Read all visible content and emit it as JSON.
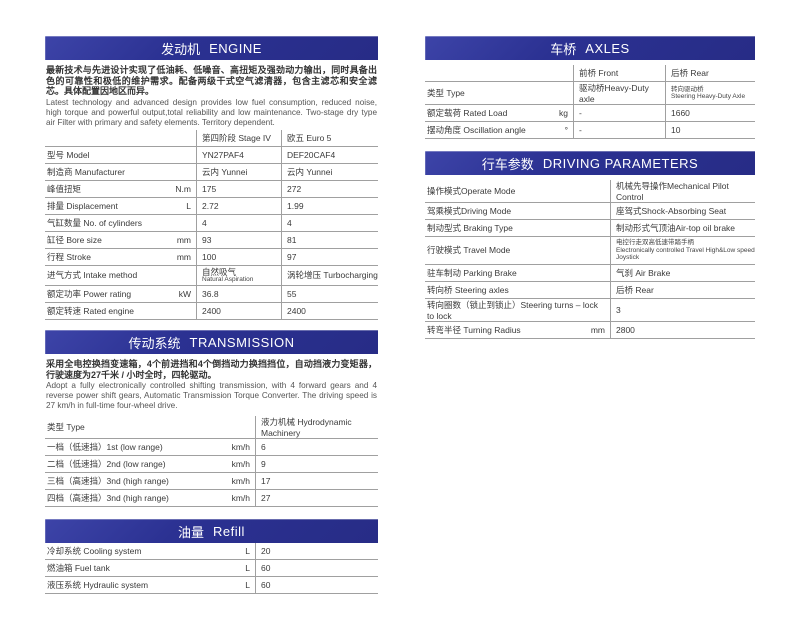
{
  "colors": {
    "header_blue": "#2b3192",
    "header_highlight": "#3d44a8",
    "rule_gray": "#a0a0a0",
    "text": "#3a3a3a"
  },
  "engine": {
    "title_zh": "发动机",
    "title_en": "ENGINE",
    "desc_zh": "最新技术与先进设计实现了低油耗、低噪音、高扭矩及强劲动力输出，同时具备出色的可靠性和极低的维护需求。配备两级干式空气滤清器，包含主滤芯和安全滤芯。具体配置因地区而异。",
    "desc_en": "Latest technology and advanced design provides low fuel consumption, reduced noise, high torque and powerful output,total reliability and low maintenance. Two-stage dry type air Filter with primary and safety elements. Territory dependent.",
    "header": {
      "col1": "第四阶段 Stage IV",
      "col2": "欧五 Euro 5"
    },
    "rows": [
      {
        "label": "型号 Model",
        "unit": "",
        "v1": "YN27PAF4",
        "v2": "DEF20CAF4"
      },
      {
        "label": "制造商 Manufacturer",
        "unit": "",
        "v1": "云内 Yunnei",
        "v2": "云内 Yunnei"
      },
      {
        "label": "峰值扭矩",
        "unit": "N.m",
        "v1": "175",
        "v2": "272"
      },
      {
        "label": "排量 Displacement",
        "unit": "L",
        "v1": "2.72",
        "v2": "1.99"
      },
      {
        "label": "气缸数量 No. of cylinders",
        "unit": "",
        "v1": "4",
        "v2": "4"
      },
      {
        "label": "缸径 Bore size",
        "unit": "mm",
        "v1": "93",
        "v2": "81"
      },
      {
        "label": "行程 Stroke",
        "unit": "mm",
        "v1": "100",
        "v2": "97"
      },
      {
        "label": "进气方式 Intake method",
        "unit": "",
        "v1_line1": "自然吸气",
        "v1_line2": "Natural Aspiration",
        "v2": "涡轮增压 Turbocharging"
      },
      {
        "label": "额定功率 Power rating",
        "unit": "kW",
        "v1": "36.8",
        "v2": "55"
      },
      {
        "label": "额定转速 Rated engine",
        "unit": "",
        "v1": "2400",
        "v2": "2400"
      }
    ]
  },
  "transmission": {
    "title_zh": "传动系统",
    "title_en": "TRANSMISSION",
    "desc_zh": "采用全电控换挡变速箱，4个前进挡和4个倒挡动力换挡挡位，自动挡液力变矩器，行驶速度为27千米 / 小时全时，四轮驱动。",
    "desc_en": "Adopt a fully electronically controlled shifting transmission, with 4 forward gears and 4 reverse power shift gears, Automatic Transmission Torque Converter. The driving speed is 27 km/h in full-time four-wheel drive.",
    "header": {
      "label": "类型 Type",
      "value": "液力机械 Hydrodynamic Machinery"
    },
    "rows": [
      {
        "label": "一档（低速挡）1st (low range)",
        "unit": "km/h",
        "value": "6"
      },
      {
        "label": "二档（低速挡）2nd (low range)",
        "unit": "km/h",
        "value": "9"
      },
      {
        "label": "三档（高速挡）3nd (high range)",
        "unit": "km/h",
        "value": "17"
      },
      {
        "label": "四档（高速挡）3nd (high range)",
        "unit": "km/h",
        "value": "27"
      }
    ]
  },
  "refill": {
    "title_zh": "油量",
    "title_en": "Refill",
    "rows": [
      {
        "label": "冷却系统 Cooling system",
        "unit": "L",
        "value": "20"
      },
      {
        "label": "燃油箱 Fuel tank",
        "unit": "L",
        "value": "60"
      },
      {
        "label": "液压系统 Hydraulic system",
        "unit": "L",
        "value": "60"
      }
    ]
  },
  "axles": {
    "title_zh": "车桥",
    "title_en": "AXLES",
    "header": {
      "col1": "前桥 Front",
      "col2": "后桥 Rear"
    },
    "rows": [
      {
        "label": "类型 Type",
        "unit": "",
        "front": "驱动桥Heavy-Duty axle",
        "rear_line1": "转向驱动桥",
        "rear_line2": "Steering Heavy-Duty Axle"
      },
      {
        "label": "额定载荷 Rated Load",
        "unit": "kg",
        "front": "-",
        "rear": "1660"
      },
      {
        "label": "摆动角度 Oscillation angle",
        "unit": "°",
        "front": "-",
        "rear": "10"
      }
    ]
  },
  "driving": {
    "title_zh": "行车参数",
    "title_en": "DRIVING PARAMETERS",
    "rows": [
      {
        "label": "操作模式Operate Mode",
        "unit": "",
        "value": "机械先导操作Mechanical Pilot Control"
      },
      {
        "label": "驾乘模式Driving Mode",
        "unit": "",
        "value": "座驾式Shock-Absorbing Seat"
      },
      {
        "label": "制动型式 Braking Type",
        "unit": "",
        "value": "制动形式气顶油Air-top oil brake"
      },
      {
        "label": "行驶模式 Travel Mode",
        "unit": "",
        "value_line1": "电控行走双高低速带踏手柄",
        "value_line2": "Electronically controlled Travel High&Low speed Joystick"
      },
      {
        "label": "驻车制动 Parking Brake",
        "unit": "",
        "value": "气刹 Air Brake"
      },
      {
        "label": "转向桥 Steering axles",
        "unit": "",
        "value": "后桥 Rear"
      },
      {
        "label": "转向圈数（锁止到锁止）Steering turns – lock to lock",
        "unit": "",
        "value": "3"
      },
      {
        "label": "转弯半径 Turning Radius",
        "unit": "mm",
        "value": "2800"
      }
    ]
  }
}
